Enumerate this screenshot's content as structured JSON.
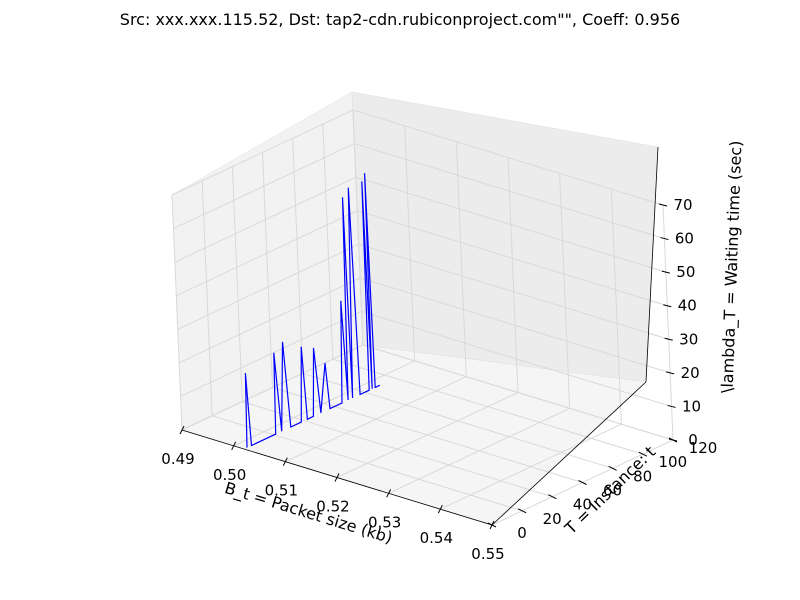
{
  "chart_data": {
    "type": "line",
    "projection": "3d",
    "title": "Src: xxx.xxx.115.52, Dst: tap2-cdn.rubiconproject.com\"\", Coeff: 0.956",
    "xlabel": "B_t = Packet size (kb)",
    "ylabel": "T = Instance: t",
    "zlabel": "\\lambda_T = Waiting time (sec)",
    "xlim": [
      0.49,
      0.55
    ],
    "ylim": [
      0,
      120
    ],
    "zlim": [
      0,
      70
    ],
    "xticks": [
      "0.49",
      "0.50",
      "0.51",
      "0.52",
      "0.53",
      "0.54",
      "0.55"
    ],
    "yticks": [
      "0",
      "20",
      "40",
      "60",
      "80",
      "100",
      "120"
    ],
    "zticks": [
      "0",
      "10",
      "20",
      "30",
      "40",
      "50",
      "60",
      "70"
    ],
    "grid": true,
    "line_color": "#0000ff",
    "series": [
      {
        "points": [
          [
            0.502,
            2,
            0
          ],
          [
            0.502,
            3,
            22
          ],
          [
            0.502,
            5,
            0
          ],
          [
            0.502,
            21,
            0
          ],
          [
            0.502,
            22,
            24
          ],
          [
            0.502,
            25,
            0
          ],
          [
            0.502,
            28,
            26
          ],
          [
            0.502,
            31,
            0
          ],
          [
            0.502,
            38,
            0
          ],
          [
            0.502,
            40,
            22
          ],
          [
            0.502,
            42,
            0
          ],
          [
            0.502,
            46,
            0
          ],
          [
            0.502,
            48,
            20
          ],
          [
            0.502,
            51,
            0
          ],
          [
            0.502,
            55,
            14
          ],
          [
            0.502,
            57,
            0
          ],
          [
            0.502,
            65,
            0
          ],
          [
            0.502,
            67,
            30
          ],
          [
            0.502,
            69,
            0
          ],
          [
            0.502,
            71,
            60
          ],
          [
            0.502,
            72,
            0
          ],
          [
            0.502,
            75,
            62
          ],
          [
            0.502,
            77,
            0
          ],
          [
            0.502,
            83,
            0
          ],
          [
            0.502,
            84,
            62
          ],
          [
            0.502,
            85,
            0
          ],
          [
            0.502,
            86,
            64
          ],
          [
            0.502,
            87,
            0
          ],
          [
            0.502,
            90,
            0
          ]
        ]
      }
    ]
  }
}
